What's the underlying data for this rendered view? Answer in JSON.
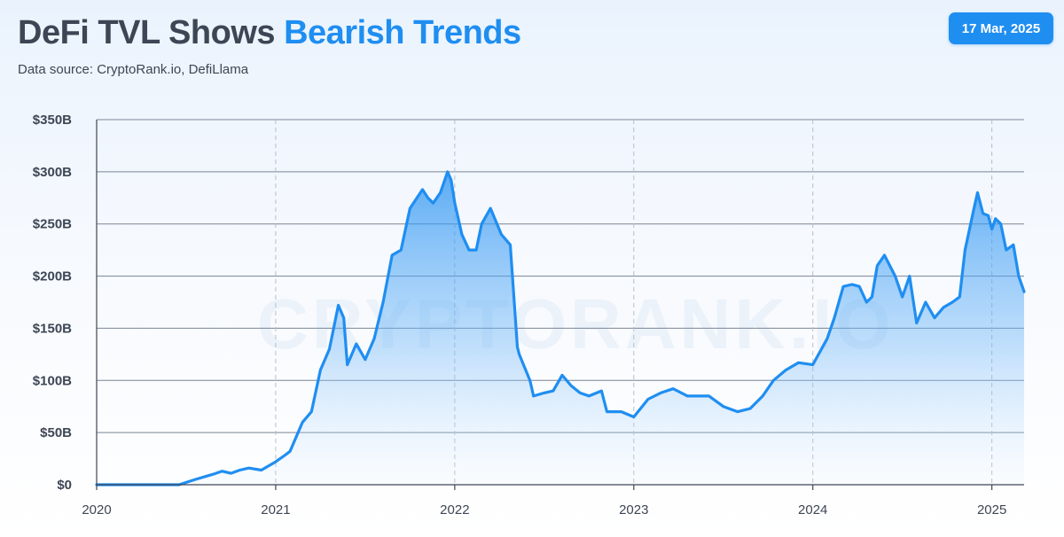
{
  "header": {
    "title_main": "DeFi TVL Shows",
    "title_accent": "Bearish Trends",
    "subtitle": "Data source: CryptoRank.io, DefiLlama",
    "date": "17 Mar, 2025",
    "watermark": "CRYPTORANK.IO"
  },
  "colors": {
    "line": "#1f8ef1",
    "accent": "#1f8ef1",
    "text": "#3d4654"
  },
  "chart_data": {
    "type": "area",
    "series": [
      {
        "x": [
          2020.0,
          2020.46,
          2020.55,
          2020.65,
          2020.7,
          2020.75,
          2020.8,
          2020.85,
          2020.92,
          2021.0,
          2021.05,
          2021.08,
          2021.15,
          2021.2,
          2021.25,
          2021.3,
          2021.35,
          2021.38,
          2021.4,
          2021.45,
          2021.5,
          2021.55,
          2021.6,
          2021.65,
          2021.7,
          2021.75,
          2021.82,
          2021.85,
          2021.88,
          2021.92,
          2021.96,
          2021.98,
          2022.0,
          2022.04,
          2022.08,
          2022.12,
          2022.15,
          2022.2,
          2022.26,
          2022.31,
          2022.35,
          2022.36,
          2022.42,
          2022.44,
          2022.5,
          2022.55,
          2022.6,
          2022.65,
          2022.7,
          2022.75,
          2022.82,
          2022.85,
          2022.93,
          2023.0,
          2023.08,
          2023.15,
          2023.22,
          2023.3,
          2023.35,
          2023.42,
          2023.5,
          2023.58,
          2023.65,
          2023.72,
          2023.78,
          2023.85,
          2023.92,
          2024.0,
          2024.08,
          2024.12,
          2024.17,
          2024.22,
          2024.26,
          2024.3,
          2024.33,
          2024.36,
          2024.4,
          2024.46,
          2024.5,
          2024.54,
          2024.58,
          2024.63,
          2024.68,
          2024.73,
          2024.78,
          2024.82,
          2024.85,
          2024.9,
          2024.92,
          2024.95,
          2024.98,
          2025.0,
          2025.02,
          2025.05,
          2025.08,
          2025.12,
          2025.15,
          2025.18
        ],
        "values": [
          0,
          0,
          5,
          10,
          13,
          11,
          14,
          16,
          14,
          22,
          28,
          32,
          60,
          70,
          110,
          130,
          172,
          160,
          115,
          135,
          120,
          140,
          175,
          220,
          225,
          265,
          283,
          275,
          270,
          280,
          300,
          292,
          270,
          240,
          225,
          225,
          250,
          265,
          240,
          230,
          132,
          125,
          100,
          85,
          88,
          90,
          105,
          95,
          88,
          85,
          90,
          70,
          70,
          65,
          82,
          88,
          92,
          85,
          85,
          85,
          75,
          70,
          73,
          85,
          100,
          110,
          117,
          115,
          140,
          160,
          190,
          192,
          190,
          175,
          180,
          210,
          220,
          200,
          180,
          200,
          155,
          175,
          160,
          170,
          175,
          180,
          225,
          265,
          280,
          260,
          258,
          245,
          255,
          250,
          225,
          230,
          200,
          185
        ]
      }
    ],
    "xlim": [
      2020,
      2025.18
    ],
    "ylim": [
      0,
      350
    ],
    "xticks": [
      2020,
      2021,
      2022,
      2023,
      2024,
      2025
    ],
    "xtick_labels": [
      "2020",
      "2021",
      "2022",
      "2023",
      "2024",
      "2025"
    ],
    "yticks": [
      0,
      50,
      100,
      150,
      200,
      250,
      300,
      350
    ],
    "ytick_labels": [
      "$0",
      "$50B",
      "$100B",
      "$150B",
      "$200B",
      "$250B",
      "$300B",
      "$350B"
    ],
    "grid": true
  }
}
